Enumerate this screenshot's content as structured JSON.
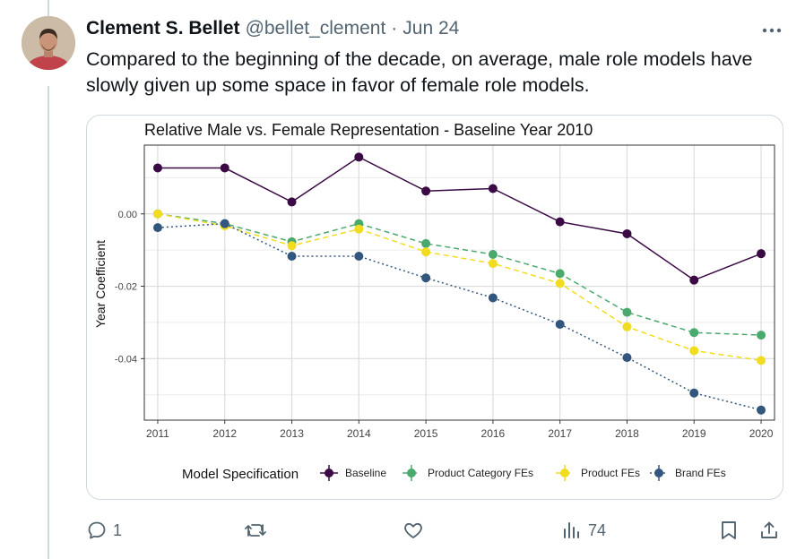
{
  "tweet": {
    "display_name": "Clement S. Bellet",
    "handle": "@bellet_clement",
    "separator": "·",
    "date": "Jun 24",
    "text": "Compared to the beginning of the decade, on average, male role models have slowly given up some space in favor of female role models.",
    "more_icon": "more-horizontal-icon"
  },
  "actions": {
    "reply_count": "1",
    "repost_count": "",
    "like_count": "",
    "views_count": "74",
    "icons": [
      "reply-icon",
      "repost-icon",
      "like-icon",
      "views-icon",
      "bookmark-icon",
      "share-icon"
    ]
  },
  "chart_data": {
    "type": "line",
    "title": "Relative Male vs. Female Representation - Baseline Year 2010",
    "xlabel": "",
    "ylabel": "Year Coefficient",
    "x": [
      2011,
      2012,
      2013,
      2014,
      2015,
      2016,
      2017,
      2018,
      2019,
      2020
    ],
    "yticks": [
      0.0,
      -0.02,
      -0.04
    ],
    "ytick_labels": [
      "0.00",
      "-0.02",
      "-0.04"
    ],
    "ylim": [
      -0.057,
      0.019
    ],
    "grid": true,
    "legend_title": "Model Specification",
    "legend_position": "bottom",
    "series": [
      {
        "name": "Baseline",
        "color": "#3b0a45",
        "dash": "solid",
        "values": [
          0.0127,
          0.0127,
          0.0033,
          0.0157,
          0.0063,
          0.007,
          -0.0022,
          -0.0055,
          -0.0183,
          -0.011
        ]
      },
      {
        "name": "Product Category FEs",
        "color": "#4aa96c",
        "dash": "dashed",
        "values": [
          0.0,
          -0.0027,
          -0.0077,
          -0.0027,
          -0.0082,
          -0.0112,
          -0.0165,
          -0.0272,
          -0.0328,
          -0.0335
        ]
      },
      {
        "name": "Product FEs",
        "color": "#f2dc1f",
        "dash": "dashed",
        "values": [
          0.0,
          -0.0033,
          -0.0088,
          -0.0042,
          -0.0105,
          -0.0137,
          -0.0192,
          -0.0312,
          -0.0378,
          -0.0405
        ]
      },
      {
        "name": "Brand FEs",
        "color": "#33567e",
        "dash": "dotted",
        "values": [
          -0.0038,
          -0.0027,
          -0.0117,
          -0.0117,
          -0.0177,
          -0.0232,
          -0.0305,
          -0.0397,
          -0.0495,
          -0.0542
        ]
      }
    ]
  }
}
